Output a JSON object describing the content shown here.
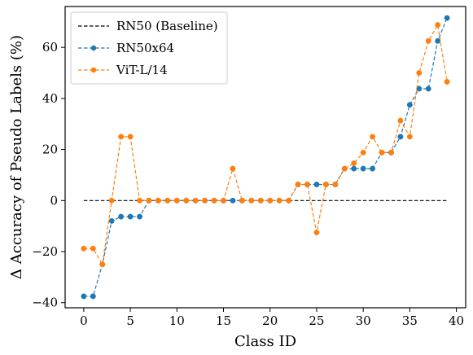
{
  "chart_data": {
    "type": "line",
    "xlabel": "Class ID",
    "ylabel": "Δ Accuracy of Pseudo Labels (%)",
    "xlim": [
      -2,
      41
    ],
    "ylim": [
      -42,
      76
    ],
    "xticks": [
      0,
      5,
      10,
      15,
      20,
      25,
      30,
      35,
      40
    ],
    "yticks": [
      -40,
      -20,
      0,
      20,
      40,
      60
    ],
    "ytick_labels": [
      "−40",
      "−20",
      "0",
      "20",
      "40",
      "60"
    ],
    "grid": false,
    "legend_position": "top-left",
    "series": [
      {
        "name": "RN50 (Baseline)",
        "color": "#000000",
        "style": "dashed",
        "marker": "none",
        "x": [
          0,
          39
        ],
        "y": [
          0,
          0
        ]
      },
      {
        "name": "RN50x64",
        "color": "#1f77b4",
        "style": "dashed",
        "marker": "circle",
        "x": [
          0,
          1,
          2,
          3,
          4,
          5,
          6,
          7,
          8,
          9,
          10,
          11,
          12,
          13,
          14,
          15,
          16,
          17,
          18,
          19,
          20,
          21,
          22,
          23,
          24,
          25,
          26,
          27,
          28,
          29,
          30,
          31,
          32,
          33,
          34,
          35,
          36,
          37,
          38,
          39
        ],
        "y": [
          -37.5,
          -37.5,
          -25,
          -8,
          -6.3,
          -6.3,
          -6.3,
          0,
          0,
          0,
          0,
          0,
          0,
          0,
          0,
          0,
          0,
          0,
          0,
          0,
          0,
          0,
          0,
          6.3,
          6.3,
          6.3,
          6.3,
          6.3,
          12.5,
          12.5,
          12.5,
          12.5,
          18.8,
          18.8,
          25,
          37.5,
          43.8,
          43.8,
          62.5,
          71.5
        ]
      },
      {
        "name": "ViT-L/14",
        "color": "#ff7f0e",
        "style": "dashed",
        "marker": "circle",
        "x": [
          0,
          1,
          2,
          3,
          4,
          5,
          6,
          7,
          8,
          9,
          10,
          11,
          12,
          13,
          14,
          15,
          16,
          17,
          18,
          19,
          20,
          21,
          22,
          23,
          24,
          25,
          26,
          27,
          28,
          29,
          30,
          31,
          32,
          33,
          34,
          35,
          36,
          37,
          38,
          39
        ],
        "y": [
          -18.8,
          -18.8,
          -25,
          0,
          25,
          25,
          0,
          0,
          0,
          0,
          0,
          0,
          0,
          0,
          0,
          0,
          12.5,
          0,
          0,
          0,
          0,
          0,
          0,
          6.3,
          6.3,
          -12.5,
          6.3,
          6.3,
          12.5,
          14.6,
          18.8,
          25,
          18.8,
          18.8,
          31.3,
          25,
          50,
          62.5,
          68.8,
          46.5
        ]
      }
    ]
  }
}
